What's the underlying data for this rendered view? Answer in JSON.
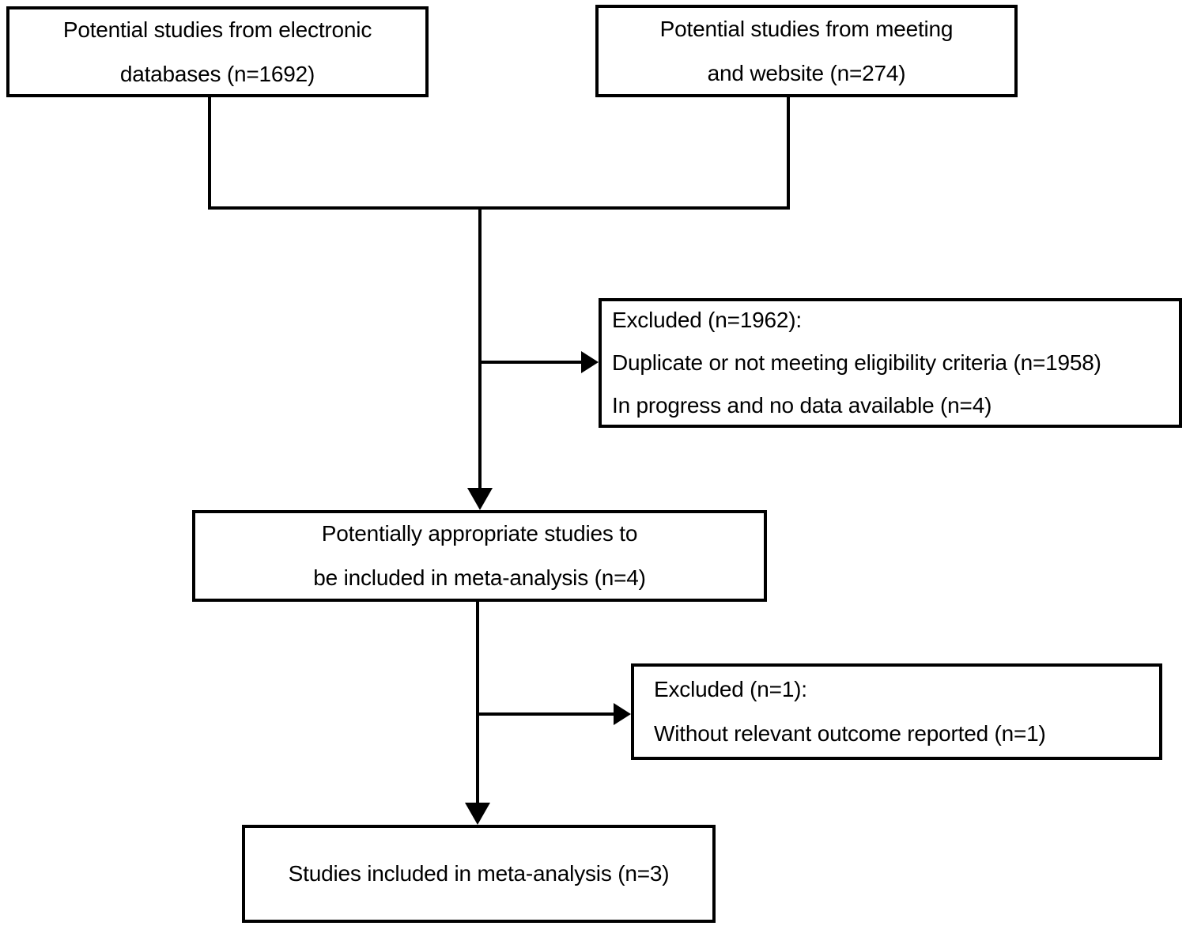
{
  "diagram_type": "study-selection-flowchart",
  "colors": {
    "background": "#ffffff",
    "box_fill": "#ffffff",
    "box_border": "#000000",
    "connector": "#000000",
    "text": "#000000"
  },
  "boxes": [
    {
      "id": "electronic-databases",
      "lines": [
        "Potential studies from electronic",
        "databases (n=1692)"
      ]
    },
    {
      "id": "meeting-website",
      "lines": [
        "Potential studies from meeting",
        "and website (n=274)"
      ]
    },
    {
      "id": "excluded-first",
      "lines": [
        "Excluded (n=1962):",
        "Duplicate or not meeting eligibility criteria (n=1958)",
        "In progress and no data available (n=4)"
      ]
    },
    {
      "id": "potentially-appropriate",
      "lines": [
        "Potentially appropriate studies to",
        "be included in meta-analysis (n=4)"
      ]
    },
    {
      "id": "excluded-second",
      "lines": [
        "Excluded (n=1):",
        "Without relevant outcome reported (n=1)"
      ]
    },
    {
      "id": "included-meta-analysis",
      "lines": [
        "Studies included in meta-analysis (n=3)"
      ]
    }
  ]
}
